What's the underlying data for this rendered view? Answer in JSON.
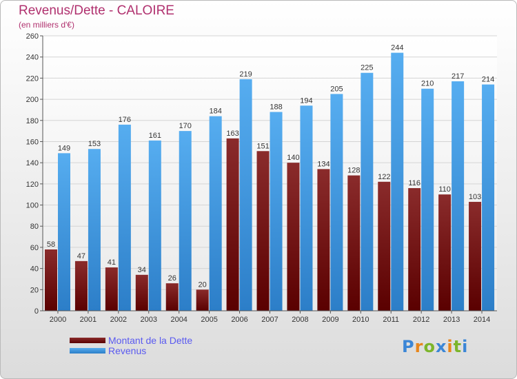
{
  "chart_data": {
    "type": "bar",
    "title": "Revenus/Dette - CALOIRE",
    "subtitle": "(en milliers d'€)",
    "categories": [
      "2000",
      "2001",
      "2002",
      "2003",
      "2004",
      "2005",
      "2006",
      "2007",
      "2008",
      "2009",
      "2010",
      "2011",
      "2012",
      "2013",
      "2014"
    ],
    "series": [
      {
        "name": "Montant de la Dette",
        "color": "#7a1a1a",
        "values": [
          58,
          47,
          41,
          34,
          26,
          20,
          163,
          151,
          140,
          134,
          128,
          122,
          116,
          110,
          103
        ]
      },
      {
        "name": "Revenus",
        "color": "#3f9be6",
        "values": [
          149,
          153,
          176,
          161,
          170,
          184,
          219,
          188,
          194,
          205,
          225,
          244,
          210,
          217,
          214
        ]
      }
    ],
    "ylim": [
      0,
      260
    ],
    "ytick_step": 20,
    "grid": true,
    "legend_position": "bottom-left"
  },
  "logo": {
    "text": "Proxiti"
  }
}
